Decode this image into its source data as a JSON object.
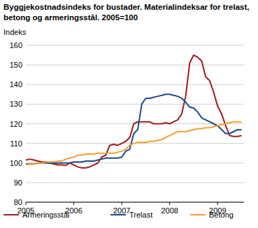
{
  "chart_data": {
    "type": "line",
    "title": "Byggjekostnadsindeks for bustader. Materialindeksar for trelast, betong og armeringsstål. 2005=100",
    "y_label": "Indeks",
    "x": [
      2005,
      2005.083,
      2005.167,
      2005.25,
      2005.333,
      2005.417,
      2005.5,
      2005.583,
      2005.667,
      2005.75,
      2005.833,
      2005.917,
      2006,
      2006.083,
      2006.167,
      2006.25,
      2006.333,
      2006.417,
      2006.5,
      2006.583,
      2006.667,
      2006.75,
      2006.833,
      2006.917,
      2007,
      2007.083,
      2007.167,
      2007.25,
      2007.333,
      2007.417,
      2007.5,
      2007.583,
      2007.667,
      2007.75,
      2007.833,
      2007.917,
      2008,
      2008.083,
      2008.167,
      2008.25,
      2008.333,
      2008.417,
      2008.5,
      2008.583,
      2008.667,
      2008.75,
      2008.833,
      2008.917,
      2009,
      2009.083,
      2009.167,
      2009.25,
      2009.333,
      2009.417,
      2009.5
    ],
    "series": [
      {
        "name": "Armeringsstål",
        "color": "#9e1b23",
        "values": [
          101.5,
          102,
          101.5,
          101,
          100.5,
          100.5,
          100,
          99.5,
          99,
          99,
          98.8,
          100,
          99,
          98,
          97.5,
          97.5,
          98,
          99,
          100,
          103,
          104,
          109,
          109.5,
          109,
          110,
          111,
          113,
          120,
          121,
          121,
          121,
          121,
          120,
          120,
          120,
          120.5,
          120,
          121,
          122,
          125,
          134,
          151,
          155,
          154,
          152,
          144,
          142,
          136,
          129,
          125,
          119,
          114,
          113.5,
          113.5,
          114
        ]
      },
      {
        "name": "Trelast",
        "color": "#1b4a8c",
        "values": [
          99.5,
          99.5,
          99.5,
          100,
          100,
          100,
          100,
          100,
          100,
          100,
          100,
          100,
          100.5,
          100.5,
          100.5,
          101,
          101,
          101,
          101.5,
          102,
          102.5,
          102.5,
          102.5,
          102.5,
          103,
          106,
          107,
          115,
          117,
          130,
          133,
          133,
          133.5,
          134,
          134.5,
          135,
          135,
          134.5,
          134,
          133,
          131,
          128.5,
          128,
          126,
          123,
          122,
          121,
          120,
          119,
          117,
          115,
          115,
          116,
          117,
          117
        ]
      },
      {
        "name": "Betong",
        "color": "#f4a12b",
        "values": [
          99,
          99.5,
          99.5,
          100,
          100,
          100.5,
          100.5,
          100.5,
          101,
          101,
          102,
          102.5,
          103,
          104,
          104,
          104.5,
          104.5,
          104.5,
          105,
          105,
          105,
          105,
          105,
          105.5,
          106,
          107,
          109,
          110,
          110.5,
          110.5,
          110.5,
          111,
          111,
          111.5,
          112,
          113,
          114,
          115,
          116,
          116,
          116,
          116.5,
          117,
          117.5,
          117.5,
          118,
          118,
          118.5,
          119,
          119.5,
          120,
          120.5,
          121,
          121,
          121
        ]
      }
    ],
    "xlim": [
      2005,
      2009.55
    ],
    "xticks": [
      2005,
      2006,
      2007,
      2008,
      2009
    ],
    "ylim": [
      80,
      160
    ],
    "yticks": [
      80,
      90,
      100,
      110,
      120,
      130,
      140,
      150,
      160
    ],
    "grid": true,
    "legend": "bottom"
  }
}
